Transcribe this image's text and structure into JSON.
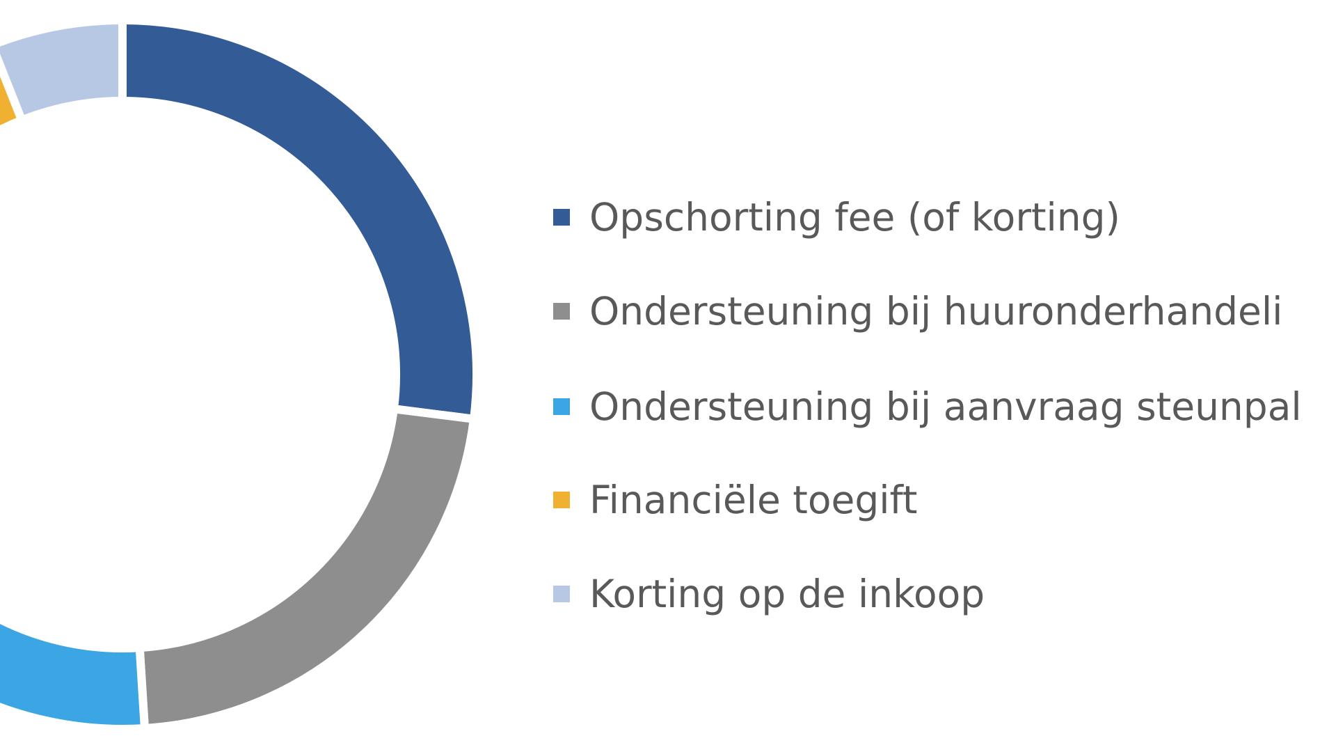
{
  "chart_data": {
    "type": "pie",
    "variant": "donut",
    "legend_position": "right",
    "series": [
      {
        "name": "Opschorting fee (of korting)",
        "value": 27,
        "color": "#335c96"
      },
      {
        "name": "Ondersteuning bij huuronderhandeli",
        "value": 22,
        "color": "#8e8e8e"
      },
      {
        "name": "Ondersteuning bij aanvraag steunpal",
        "value": 38,
        "color": "#3ca6e4"
      },
      {
        "name": "Financiële toegift",
        "value": 7,
        "color": "#f0b132"
      },
      {
        "name": "Korting op de inkoop",
        "value": 6,
        "color": "#b6c8e4"
      }
    ]
  }
}
